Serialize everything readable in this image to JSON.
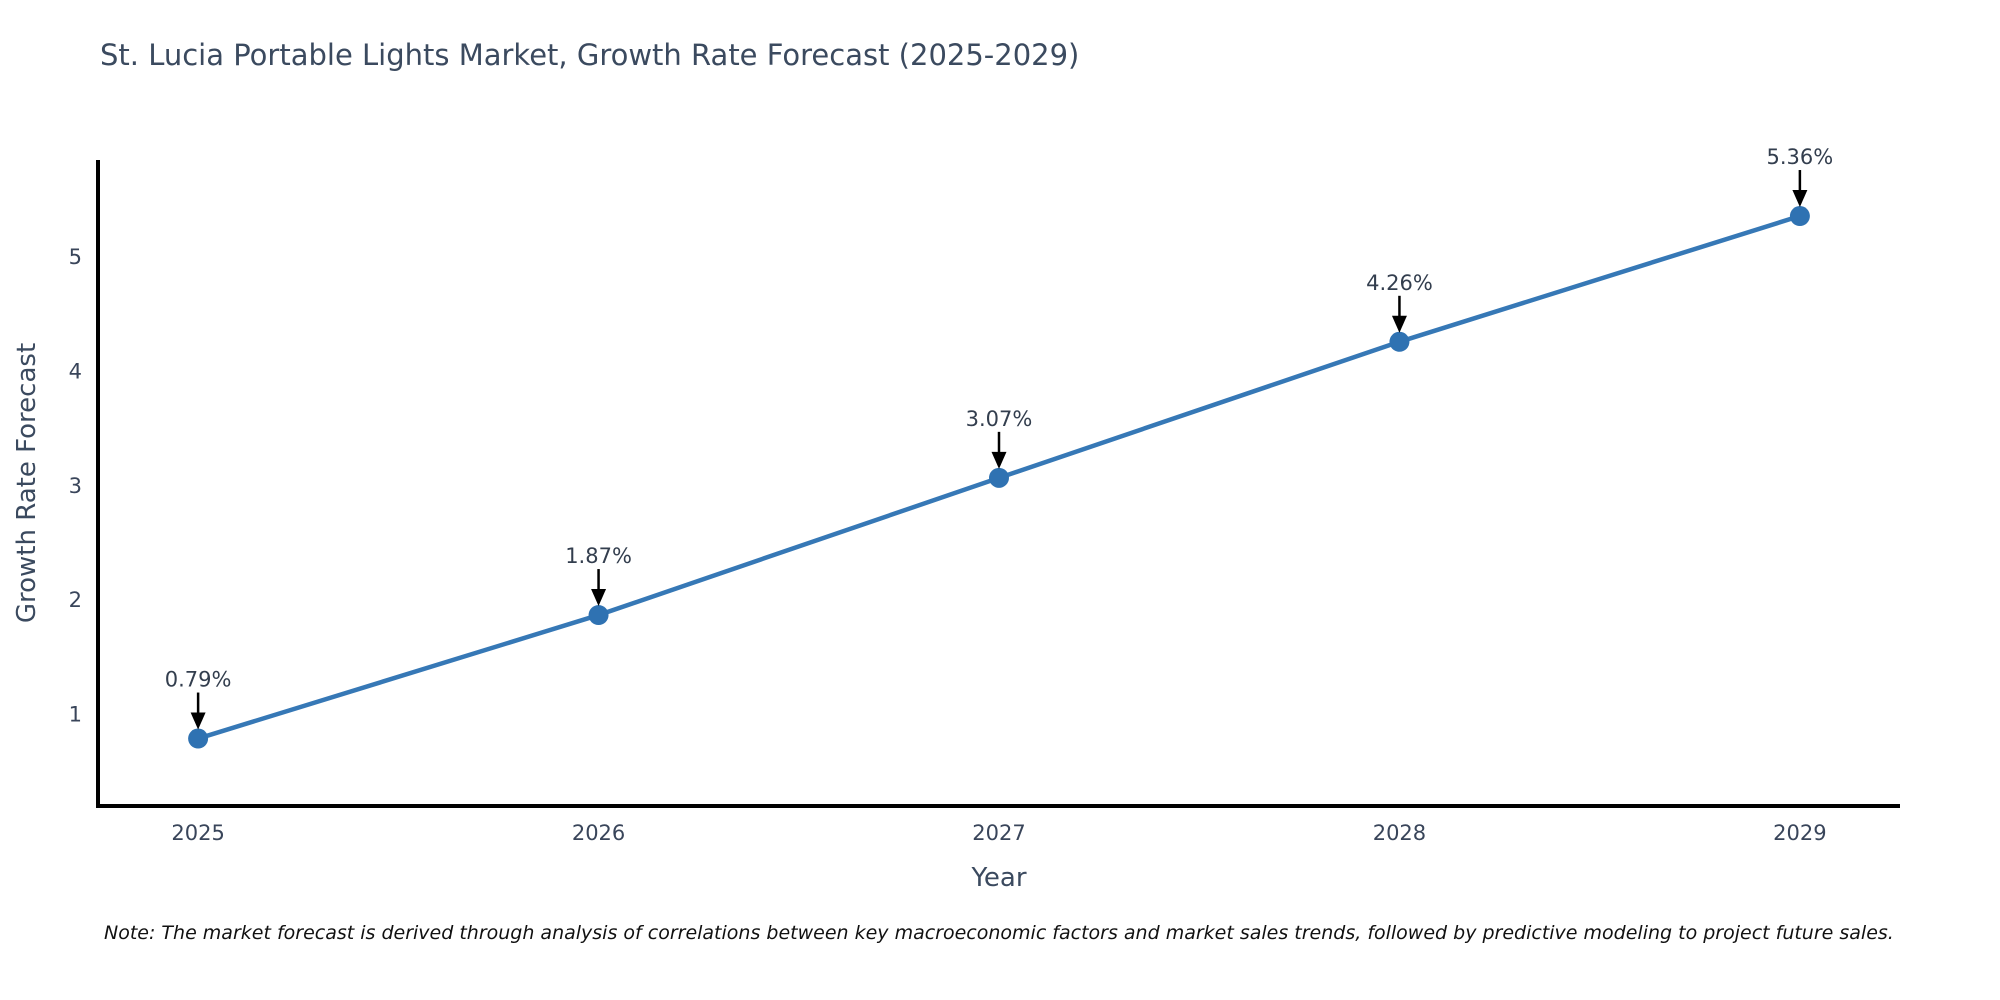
{
  "title": "St. Lucia Portable Lights Market, Growth Rate Forecast (2025-2029)",
  "note": "Note: The market forecast is derived through analysis of correlations between key macroeconomic factors and market sales trends, followed by predictive modeling to project future sales.",
  "colors": {
    "background": "#ffffff",
    "line": "#3678b6",
    "marker": "#2f72b2",
    "axis_spine": "#000000",
    "arrow": "#000000",
    "tick_text": "#39455a",
    "annotation_text": "#333e4e",
    "title_text": "#3b4a5f",
    "note_text": "#111111"
  },
  "chart_data": {
    "type": "line",
    "title": "St. Lucia Portable Lights Market, Growth Rate Forecast (2025-2029)",
    "xlabel": "Year",
    "ylabel": "Growth Rate Forecast",
    "x": [
      2025,
      2026,
      2027,
      2028,
      2029
    ],
    "values": [
      0.79,
      1.87,
      3.07,
      4.26,
      5.36
    ],
    "point_labels": [
      "0.79%",
      "1.87%",
      "3.07%",
      "4.26%",
      "5.36%"
    ],
    "xticks": [
      2025,
      2026,
      2027,
      2028,
      2029
    ],
    "yticks": [
      1,
      2,
      3,
      4,
      5
    ],
    "xlim": [
      2024.75,
      2029.25
    ],
    "ylim": [
      0.2,
      5.85
    ],
    "grid": false,
    "legend_position": "none",
    "annotation_style": "value label above point with downward black arrow"
  }
}
